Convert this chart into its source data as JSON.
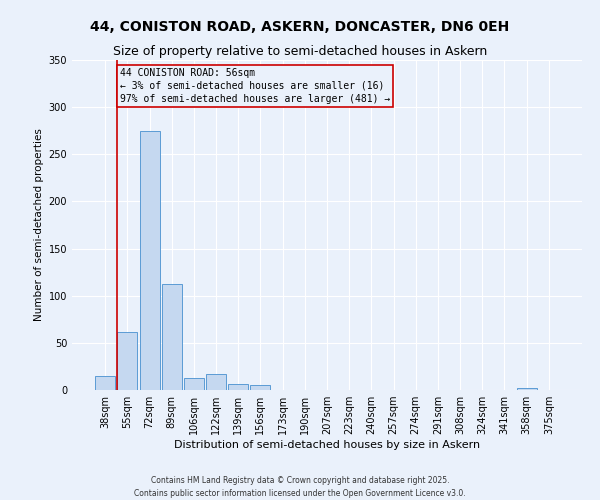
{
  "title1": "44, CONISTON ROAD, ASKERN, DONCASTER, DN6 0EH",
  "title2": "Size of property relative to semi-detached houses in Askern",
  "xlabel": "Distribution of semi-detached houses by size in Askern",
  "ylabel": "Number of semi-detached properties",
  "categories": [
    "38sqm",
    "55sqm",
    "72sqm",
    "89sqm",
    "106sqm",
    "122sqm",
    "139sqm",
    "156sqm",
    "173sqm",
    "190sqm",
    "207sqm",
    "223sqm",
    "240sqm",
    "257sqm",
    "274sqm",
    "291sqm",
    "308sqm",
    "324sqm",
    "341sqm",
    "358sqm",
    "375sqm"
  ],
  "values": [
    15,
    62,
    275,
    112,
    13,
    17,
    6,
    5,
    0,
    0,
    0,
    0,
    0,
    0,
    0,
    0,
    0,
    0,
    0,
    2,
    0
  ],
  "bar_color": "#c5d8f0",
  "bar_edge_color": "#5b9bd5",
  "vline_x_index": 1,
  "annotation_title": "44 CONISTON ROAD: 56sqm",
  "annotation_line1": "← 3% of semi-detached houses are smaller (16)",
  "annotation_line2": "97% of semi-detached houses are larger (481) →",
  "vline_color": "#cc0000",
  "footer1": "Contains HM Land Registry data © Crown copyright and database right 2025.",
  "footer2": "Contains public sector information licensed under the Open Government Licence v3.0.",
  "background_color": "#eaf1fb",
  "grid_color": "#ffffff",
  "ylim": [
    0,
    350
  ],
  "yticks": [
    0,
    50,
    100,
    150,
    200,
    250,
    300,
    350
  ],
  "title1_fontsize": 10,
  "title2_fontsize": 9,
  "xlabel_fontsize": 8,
  "ylabel_fontsize": 7.5,
  "tick_fontsize": 7,
  "annotation_fontsize": 7,
  "footer_fontsize": 5.5
}
